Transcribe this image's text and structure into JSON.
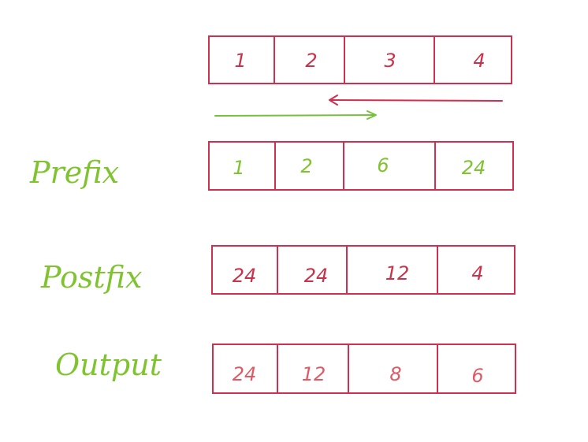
{
  "colors": {
    "border": "#d0304f",
    "red_text": "#c8324a",
    "output_text": "#e05a66",
    "green": "#7fc32e",
    "arrow_red": "#d0304f",
    "arrow_green": "#74c23a"
  },
  "input": {
    "cells": [
      "1",
      "2",
      "3",
      "4"
    ]
  },
  "prefix": {
    "label": "Prefix",
    "cells": [
      "1",
      "2",
      "6",
      "24"
    ]
  },
  "postfix": {
    "label": "Postfix",
    "cells": [
      "24",
      "24",
      "12",
      "4"
    ]
  },
  "output": {
    "label": "Output",
    "cells": [
      "24",
      "12",
      "8",
      "6"
    ]
  }
}
